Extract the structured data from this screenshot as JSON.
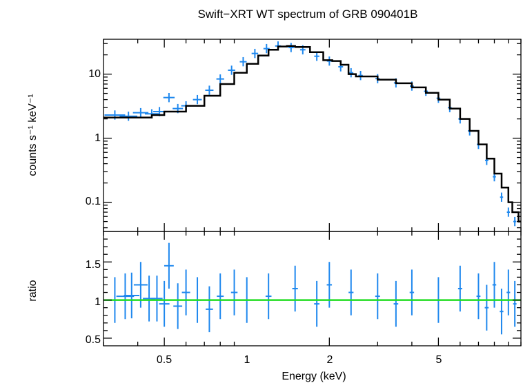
{
  "chart_data": [
    {
      "type": "line",
      "panel": "spectrum",
      "title": "Swift−XRT WT spectrum of GRB 090401B",
      "xlabel": "",
      "ylabel": "counts s⁻¹ keV⁻¹",
      "xscale": "log",
      "yscale": "log",
      "xlim": [
        0.3,
        10
      ],
      "ylim": [
        0.035,
        35
      ],
      "yticks": [
        0.1,
        1,
        10
      ],
      "ytick_labels": [
        "0.1",
        "1",
        "10"
      ],
      "series": [
        {
          "role": "data",
          "style": "points with error bars",
          "color": "#1f88ee",
          "x": [
            0.33,
            0.37,
            0.41,
            0.45,
            0.48,
            0.52,
            0.56,
            0.6,
            0.66,
            0.73,
            0.8,
            0.88,
            0.97,
            1.07,
            1.18,
            1.3,
            1.45,
            1.6,
            1.8,
            2.0,
            2.2,
            2.4,
            2.6,
            3.0,
            3.5,
            4.0,
            4.5,
            5.0,
            5.5,
            6.0,
            6.5,
            7.0,
            7.5,
            8.0,
            8.5,
            9.0,
            9.5
          ],
          "y": [
            2.3,
            2.2,
            2.5,
            2.4,
            2.6,
            4.3,
            2.9,
            3.2,
            4.0,
            5.6,
            8.4,
            11.5,
            15.6,
            21.0,
            25.0,
            27.5,
            26.0,
            24.0,
            19.0,
            16.0,
            13.0,
            10.5,
            9.5,
            8.5,
            7.3,
            6.5,
            5.4,
            4.2,
            3.0,
            2.0,
            1.3,
            0.8,
            0.45,
            0.25,
            0.12,
            0.07,
            0.05
          ]
        },
        {
          "role": "model",
          "style": "step line",
          "color": "#000000",
          "x": [
            0.3,
            0.45,
            0.5,
            0.6,
            0.7,
            0.8,
            0.9,
            1.0,
            1.1,
            1.2,
            1.3,
            1.4,
            1.5,
            1.7,
            1.9,
            2.05,
            2.2,
            2.35,
            2.5,
            3.0,
            3.5,
            4.0,
            4.5,
            5.0,
            5.5,
            6.0,
            6.5,
            7.0,
            7.5,
            8.0,
            8.5,
            9.0,
            9.3,
            9.8,
            10.0
          ],
          "y": [
            2.1,
            2.3,
            2.6,
            3.2,
            4.6,
            7.0,
            10.5,
            14.5,
            19.5,
            24.0,
            27.0,
            27.5,
            26.5,
            22.0,
            16.5,
            16.0,
            14.0,
            10.0,
            9.2,
            8.2,
            7.2,
            6.2,
            5.1,
            4.0,
            2.9,
            2.0,
            1.3,
            0.8,
            0.48,
            0.28,
            0.17,
            0.1,
            0.07,
            0.05,
            0.05
          ]
        }
      ]
    },
    {
      "type": "scatter",
      "panel": "ratio",
      "xlabel": "Energy (keV)",
      "ylabel": "ratio",
      "xscale": "log",
      "xlim": [
        0.3,
        10
      ],
      "ylim": [
        0.4,
        1.9
      ],
      "xticks": [
        0.5,
        1,
        2,
        5
      ],
      "xtick_labels": [
        "0.5",
        "1",
        "2",
        "5"
      ],
      "yticks": [
        0.5,
        1,
        1.5
      ],
      "ytick_labels": [
        "0.5",
        "1",
        "1.5"
      ],
      "series": [
        {
          "role": "data",
          "style": "points with error bars",
          "color": "#1f88ee",
          "x": [
            0.33,
            0.36,
            0.38,
            0.41,
            0.44,
            0.47,
            0.5,
            0.52,
            0.56,
            0.6,
            0.66,
            0.73,
            0.8,
            0.9,
            1.0,
            1.2,
            1.5,
            1.8,
            2.0,
            2.4,
            3.0,
            3.5,
            4.0,
            5.0,
            6.0,
            7.0,
            7.5,
            8.0,
            8.5,
            9.0,
            9.5
          ],
          "y": [
            1.0,
            1.05,
            1.06,
            1.2,
            1.02,
            1.02,
            0.95,
            1.45,
            0.92,
            1.1,
            1.0,
            0.88,
            1.05,
            1.1,
            1.0,
            1.05,
            1.15,
            0.95,
            1.2,
            1.1,
            1.05,
            0.95,
            1.1,
            1.0,
            1.15,
            1.05,
            0.9,
            1.2,
            0.85,
            1.1,
            0.95
          ]
        },
        {
          "role": "reference",
          "style": "horizontal line",
          "color": "#22dd22",
          "y": 1.0
        }
      ]
    }
  ]
}
